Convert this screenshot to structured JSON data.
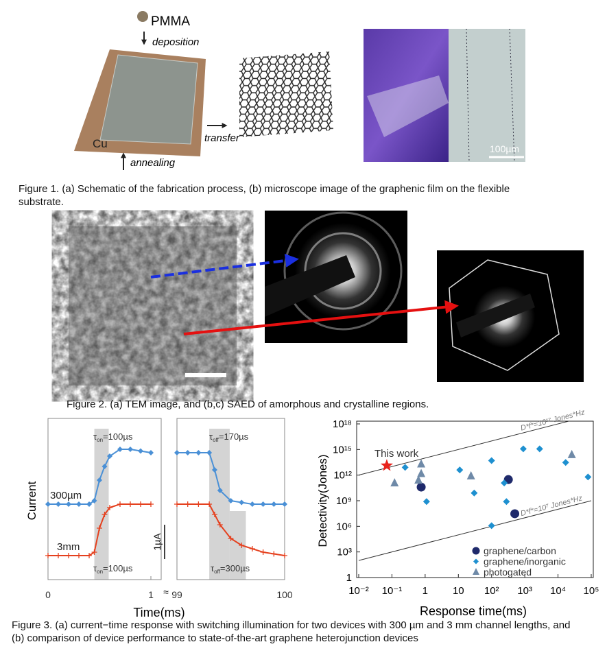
{
  "figure1": {
    "labels": {
      "pmma": "PMMA",
      "deposition": "deposition",
      "transfer": "transfer",
      "cu": "Cu",
      "annealing": "annealing",
      "scale_bar": "100µm"
    },
    "caption": "Figure 1. (a) Schematic of the fabrication process, (b) microscope image of the graphenic film on the flexible substrate."
  },
  "figure2": {
    "caption": "Figure 2. (a) TEM image, and (b,c) SAED of amorphous and crystalline regions."
  },
  "figure3": {
    "panel_a": {
      "y_label": "Current",
      "x_label": "Time(ms)",
      "scale_bar": {
        "label": "1µA",
        "value": 1
      },
      "ylim": [
        0,
        4.7
      ],
      "segments": [
        {
          "xlim": [
            0,
            1
          ],
          "xticks": [
            0,
            1
          ],
          "x": [
            0,
            0.1,
            0.2,
            0.3,
            0.4,
            0.45,
            0.5,
            0.55,
            0.6,
            0.7,
            0.8,
            0.9,
            1.0
          ]
        },
        {
          "xlim": [
            99,
            100
          ],
          "xticks": [
            99,
            100
          ],
          "x": [
            99,
            99.1,
            99.2,
            99.3,
            99.35,
            99.4,
            99.5,
            99.6,
            99.7,
            99.8,
            99.9,
            100
          ]
        }
      ],
      "series": [
        {
          "name": "300µm",
          "color": "#4a90d6",
          "marker": "diamond",
          "values": [
            [
              2.2,
              2.2,
              2.2,
              2.2,
              2.2,
              2.3,
              2.9,
              3.3,
              3.6,
              3.8,
              3.8,
              3.75,
              3.7
            ],
            [
              3.7,
              3.7,
              3.7,
              3.7,
              3.2,
              2.6,
              2.3,
              2.25,
              2.2,
              2.2,
              2.2,
              2.2
            ]
          ]
        },
        {
          "name": "3mm",
          "color": "#e5401e",
          "marker": "plus",
          "values": [
            [
              0.7,
              0.7,
              0.7,
              0.7,
              0.7,
              0.8,
              1.5,
              1.9,
              2.1,
              2.2,
              2.2,
              2.2,
              2.2
            ],
            [
              2.2,
              2.2,
              2.2,
              2.2,
              1.9,
              1.6,
              1.2,
              1.0,
              0.9,
              0.8,
              0.75,
              0.7
            ]
          ]
        }
      ],
      "shading": [
        {
          "x": [
            0.45,
            0.59
          ],
          "y": [
            0,
            4.4
          ]
        },
        {
          "x": [
            99.3,
            99.49
          ],
          "y": [
            0,
            4.4
          ]
        },
        {
          "x": [
            99.49,
            99.64
          ],
          "y": [
            0,
            2.0
          ]
        }
      ],
      "annotations": [
        {
          "symbol": "τ",
          "sub": "on",
          "text": "=100µs"
        },
        {
          "symbol": "τ",
          "sub": "on",
          "text": "=100µs"
        },
        {
          "symbol": "τ",
          "sub": "off",
          "text": "=170µs"
        },
        {
          "symbol": "τ",
          "sub": "off",
          "text": "=300µs"
        }
      ]
    },
    "panel_b": {
      "type": "scatter",
      "x_label": "Response time(ms)",
      "y_label": "Detectivity(Jones)",
      "xscale": "log",
      "yscale": "log",
      "xlim": [
        0.01,
        100000
      ],
      "ylim": [
        1,
        1e+18
      ],
      "xticks": [
        {
          "value": 0.01,
          "label": "10⁻²"
        },
        {
          "value": 0.1,
          "label": "10⁻¹"
        },
        1,
        10,
        {
          "value": 100,
          "label": "10²"
        },
        {
          "value": 1000,
          "label": "10³"
        },
        {
          "value": 10000,
          "label": "10⁴"
        },
        {
          "value": 100000,
          "label": "10⁵"
        }
      ],
      "yticks": [
        1,
        {
          "value": 1000,
          "label": "10³"
        },
        {
          "value": 1000000,
          "label": "10⁶"
        },
        {
          "value": 1000000000.0,
          "label": "10⁹"
        },
        {
          "value": 1000000000000.0,
          "label": "10¹²"
        },
        {
          "value": 1000000000000000.0,
          "label": "10¹⁵"
        },
        {
          "value": 1e+18,
          "label": "10¹⁸"
        }
      ],
      "reference_lines": [
        {
          "label": "D*f*=10¹⁷ Jones*Hz",
          "value": 1e+17
        },
        {
          "label": "D*f*=10⁷ Jones*Hz",
          "value": 10000000.0
        }
      ],
      "highlight": {
        "label": "This work",
        "x": 0.07,
        "value": 13000000000000.0,
        "color": "#e8231c"
      },
      "series": [
        {
          "name": "graphene/carbon",
          "color": "#1f2a6b",
          "marker": "circle",
          "x": [
            0.76,
            320,
            500
          ],
          "values": [
            40000000000.0,
            300000000000.0,
            30000000.0
          ]
        },
        {
          "name": "graphene/inorganic",
          "color": "#1e90d0",
          "marker": "diamond",
          "x": [
            0.25,
            1.1,
            11,
            30,
            100,
            100,
            240,
            280,
            900,
            2800,
            17000,
            80000
          ],
          "values": [
            8000000000000.0,
            800000000.0,
            4000000000000.0,
            8000000000.0,
            50000000000000.0,
            1200000.0,
            120000000000.0,
            800000000.0,
            1200000000000000.0,
            1200000000000000.0,
            30000000000000.0,
            600000000000.0
          ]
        },
        {
          "name": "photogated",
          "color": "#6f8aa8",
          "marker": "triangle",
          "x": [
            0.12,
            0.63,
            0.76,
            0.76,
            24,
            26000
          ],
          "values": [
            120000000000.0,
            250000000000.0,
            20000000000000.0,
            1500000000000.0,
            800000000000.0,
            250000000000000.0
          ]
        }
      ],
      "legend": "lower right"
    },
    "caption": "Figure 3. (a) current−time response with switching illumination for two devices with 300 µm and 3 mm channel lengths, and (b) comparison of device performance to state-of-the-art graphene heterojunction devices"
  }
}
